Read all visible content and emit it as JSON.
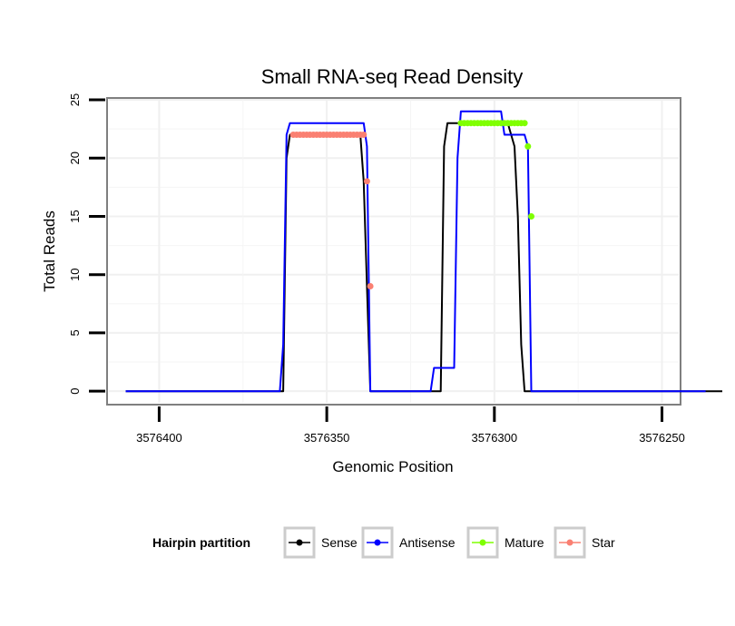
{
  "chart_data": {
    "type": "line",
    "title": "Small RNA-seq Read Density",
    "xlabel": "Genomic Position",
    "ylabel": "Total Reads",
    "xlim": [
      3576415,
      3576245
    ],
    "ylim": [
      -1,
      25
    ],
    "x_ticks": [
      3576400,
      3576350,
      3576300,
      3576250
    ],
    "y_ticks": [
      0,
      5,
      10,
      15,
      20,
      25
    ],
    "x_tick_labels": [
      "3576400",
      "3576350",
      "3576300",
      "3576250"
    ],
    "y_tick_labels": [
      "0",
      "5",
      "10",
      "15",
      "20",
      "25"
    ],
    "grid": true,
    "legend": {
      "title": "Hairpin partition",
      "position": "bottom",
      "entries": [
        {
          "name": "Sense",
          "color": "#000000"
        },
        {
          "name": "Antisense",
          "color": "#0000ff"
        },
        {
          "name": "Mature",
          "color": "#7fff00"
        },
        {
          "name": "Star",
          "color": "#fa8072"
        }
      ]
    },
    "series": [
      {
        "name": "Sense",
        "color": "#000000",
        "points": [
          [
            3576410,
            0
          ],
          [
            3576363,
            0
          ],
          [
            3576362,
            20
          ],
          [
            3576361,
            22
          ],
          [
            3576340,
            22
          ],
          [
            3576339,
            18
          ],
          [
            3576338,
            9
          ],
          [
            3576337,
            0
          ],
          [
            3576316,
            0
          ],
          [
            3576315,
            21
          ],
          [
            3576314,
            23
          ],
          [
            3576296,
            23
          ],
          [
            3576295,
            22
          ],
          [
            3576294,
            21
          ],
          [
            3576293,
            15
          ],
          [
            3576292,
            4
          ],
          [
            3576291,
            0
          ],
          [
            3576232,
            0
          ]
        ]
      },
      {
        "name": "Antisense",
        "color": "#0000ff",
        "points": [
          [
            3576410,
            0
          ],
          [
            3576364,
            0
          ],
          [
            3576363,
            4
          ],
          [
            3576362,
            22
          ],
          [
            3576361,
            23
          ],
          [
            3576339,
            23
          ],
          [
            3576338,
            21
          ],
          [
            3576337,
            0
          ],
          [
            3576319,
            0
          ],
          [
            3576318,
            2
          ],
          [
            3576312,
            2
          ],
          [
            3576311,
            20
          ],
          [
            3576310,
            24
          ],
          [
            3576298,
            24
          ],
          [
            3576297,
            22
          ],
          [
            3576291,
            22
          ],
          [
            3576290,
            21
          ],
          [
            3576289,
            0
          ],
          [
            3576237,
            0
          ]
        ]
      },
      {
        "name": "Mature",
        "color": "#7fff00",
        "points": [
          [
            3576310,
            23
          ],
          [
            3576309,
            23
          ],
          [
            3576308,
            23
          ],
          [
            3576307,
            23
          ],
          [
            3576306,
            23
          ],
          [
            3576305,
            23
          ],
          [
            3576304,
            23
          ],
          [
            3576303,
            23
          ],
          [
            3576302,
            23
          ],
          [
            3576301,
            23
          ],
          [
            3576300,
            23
          ],
          [
            3576299,
            23
          ],
          [
            3576298,
            23
          ],
          [
            3576297,
            23
          ],
          [
            3576296,
            23
          ],
          [
            3576295,
            23
          ],
          [
            3576294,
            23
          ],
          [
            3576293,
            23
          ],
          [
            3576292,
            23
          ],
          [
            3576291,
            23
          ],
          [
            3576290,
            21
          ],
          [
            3576289,
            15
          ]
        ]
      },
      {
        "name": "Star",
        "color": "#fa8072",
        "points": [
          [
            3576360,
            22
          ],
          [
            3576359,
            22
          ],
          [
            3576358,
            22
          ],
          [
            3576357,
            22
          ],
          [
            3576356,
            22
          ],
          [
            3576355,
            22
          ],
          [
            3576354,
            22
          ],
          [
            3576353,
            22
          ],
          [
            3576352,
            22
          ],
          [
            3576351,
            22
          ],
          [
            3576350,
            22
          ],
          [
            3576349,
            22
          ],
          [
            3576348,
            22
          ],
          [
            3576347,
            22
          ],
          [
            3576346,
            22
          ],
          [
            3576345,
            22
          ],
          [
            3576344,
            22
          ],
          [
            3576343,
            22
          ],
          [
            3576342,
            22
          ],
          [
            3576341,
            22
          ],
          [
            3576340,
            22
          ],
          [
            3576339,
            22
          ],
          [
            3576338,
            18
          ],
          [
            3576337,
            9
          ]
        ]
      }
    ]
  }
}
